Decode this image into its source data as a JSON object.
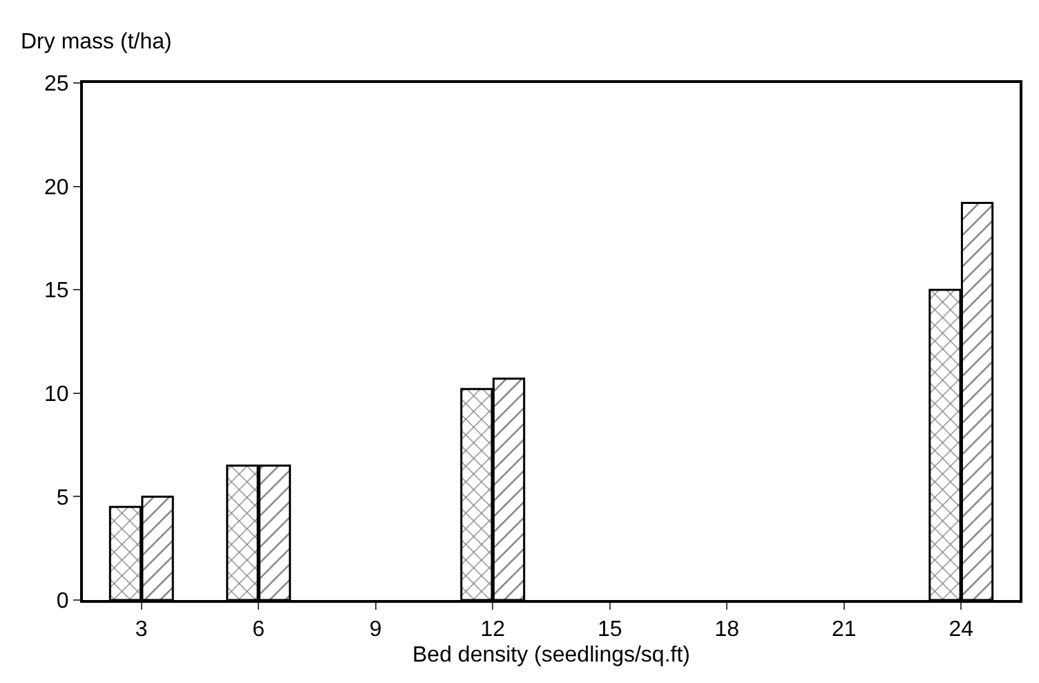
{
  "chart_data": {
    "type": "bar",
    "ylabel": "Dry mass (t/ha)",
    "xlabel": "Bed density (seedlings/sq.ft)",
    "categories": [
      "3",
      "6",
      "9",
      "12",
      "15",
      "18",
      "21",
      "24"
    ],
    "series": [
      {
        "color": "#000000",
        "values": [
          4.5,
          6.5,
          null,
          10.2,
          null,
          null,
          null,
          15.0
        ]
      },
      {
        "color": "#000000",
        "values": [
          5.0,
          6.5,
          null,
          10.7,
          null,
          null,
          null,
          19.2
        ]
      }
    ],
    "ylim": [
      0,
      25
    ],
    "yticks": [
      0,
      5,
      10,
      15,
      20,
      25
    ],
    "grid": false
  }
}
